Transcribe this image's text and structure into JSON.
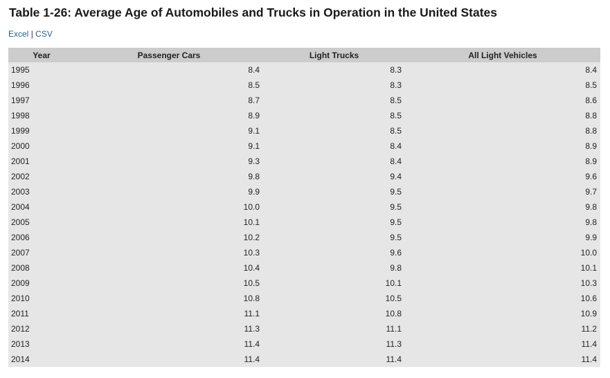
{
  "header": {
    "title": "Table 1-26: Average Age of Automobiles and Trucks in Operation in the United States"
  },
  "links": {
    "excel": "Excel",
    "separator": "|",
    "csv": "CSV"
  },
  "table": {
    "columns": [
      "Year",
      "Passenger Cars",
      "Light Trucks",
      "All Light Vehicles"
    ],
    "rows": [
      [
        "1995",
        "8.4",
        "8.3",
        "8.4"
      ],
      [
        "1996",
        "8.5",
        "8.3",
        "8.5"
      ],
      [
        "1997",
        "8.7",
        "8.5",
        "8.6"
      ],
      [
        "1998",
        "8.9",
        "8.5",
        "8.8"
      ],
      [
        "1999",
        "9.1",
        "8.5",
        "8.8"
      ],
      [
        "2000",
        "9.1",
        "8.4",
        "8.9"
      ],
      [
        "2001",
        "9.3",
        "8.4",
        "8.9"
      ],
      [
        "2002",
        "9.8",
        "9.4",
        "9.6"
      ],
      [
        "2003",
        "9.9",
        "9.5",
        "9.7"
      ],
      [
        "2004",
        "10.0",
        "9.5",
        "9.8"
      ],
      [
        "2005",
        "10.1",
        "9.5",
        "9.8"
      ],
      [
        "2006",
        "10.2",
        "9.5",
        "9.9"
      ],
      [
        "2007",
        "10.3",
        "9.6",
        "10.0"
      ],
      [
        "2008",
        "10.4",
        "9.8",
        "10.1"
      ],
      [
        "2009",
        "10.5",
        "10.1",
        "10.3"
      ],
      [
        "2010",
        "10.8",
        "10.5",
        "10.6"
      ],
      [
        "2011",
        "11.1",
        "10.8",
        "10.9"
      ],
      [
        "2012",
        "11.3",
        "11.1",
        "11.2"
      ],
      [
        "2013",
        "11.4",
        "11.3",
        "11.4"
      ],
      [
        "2014",
        "11.4",
        "11.4",
        "11.4"
      ]
    ]
  }
}
